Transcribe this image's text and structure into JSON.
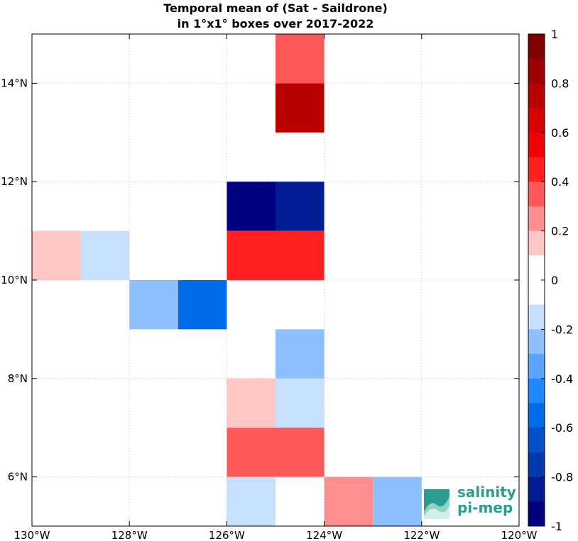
{
  "chart_data": {
    "type": "heatmap",
    "title": [
      "Temporal mean of (Sat - Saildrone)",
      "in 1°x1° boxes over 2017-2022"
    ],
    "xlim": [
      -130,
      -120
    ],
    "ylim": [
      5,
      15
    ],
    "x_ticks": [
      -130,
      -128,
      -126,
      -124,
      -122,
      -120
    ],
    "x_tick_labels": [
      "130°W",
      "128°W",
      "126°W",
      "124°W",
      "122°W",
      "120°W"
    ],
    "y_ticks": [
      6,
      8,
      10,
      12,
      14
    ],
    "y_tick_labels": [
      "6°N",
      "8°N",
      "10°N",
      "12°N",
      "14°N"
    ],
    "grid": true,
    "cells": [
      {
        "lon": -125,
        "lat": 14,
        "value": 0.35
      },
      {
        "lon": -125,
        "lat": 13,
        "value": 0.75
      },
      {
        "lon": -126,
        "lat": 11,
        "value": -0.95
      },
      {
        "lon": -125,
        "lat": 11,
        "value": -0.85
      },
      {
        "lon": -130,
        "lat": 10,
        "value": 0.15
      },
      {
        "lon": -129,
        "lat": 10,
        "value": -0.15
      },
      {
        "lon": -126,
        "lat": 10,
        "value": 0.45
      },
      {
        "lon": -125,
        "lat": 10,
        "value": 0.45
      },
      {
        "lon": -128,
        "lat": 9,
        "value": -0.25
      },
      {
        "lon": -127,
        "lat": 9,
        "value": -0.55
      },
      {
        "lon": -125,
        "lat": 8,
        "value": -0.25
      },
      {
        "lon": -126,
        "lat": 7,
        "value": 0.15
      },
      {
        "lon": -125,
        "lat": 7,
        "value": -0.15
      },
      {
        "lon": -126,
        "lat": 6,
        "value": 0.35
      },
      {
        "lon": -125,
        "lat": 6,
        "value": 0.35
      },
      {
        "lon": -126,
        "lat": 5,
        "value": -0.15
      },
      {
        "lon": -124,
        "lat": 5,
        "value": 0.25
      },
      {
        "lon": -123,
        "lat": 5,
        "value": -0.25
      }
    ],
    "colorbar": {
      "range": [
        -1,
        1
      ],
      "tick_values": [
        1,
        0.8,
        0.6,
        0.4,
        0.2,
        0,
        -0.2,
        -0.4,
        -0.6,
        -0.8,
        -1
      ],
      "tick_labels": [
        "1",
        "0.8",
        "0.6",
        "0.4",
        "0.2",
        "0",
        "-0.2",
        "-0.4",
        "-0.6",
        "-0.8",
        "-1"
      ],
      "colors_top_to_bottom": [
        "#800000",
        "#9c0000",
        "#b80000",
        "#d40000",
        "#f00000",
        "#ff2020",
        "#ff5858",
        "#ff8e8e",
        "#ffc6c6",
        "#ffffff",
        "#ffffff",
        "#c8e0ff",
        "#8ec0ff",
        "#58a4ff",
        "#2088ff",
        "#006ae8",
        "#0050cc",
        "#0038b0",
        "#001c94",
        "#000080"
      ]
    }
  },
  "logo": {
    "line1": "salinity",
    "line2": "pi-mep",
    "color": "#2a9d8f"
  }
}
